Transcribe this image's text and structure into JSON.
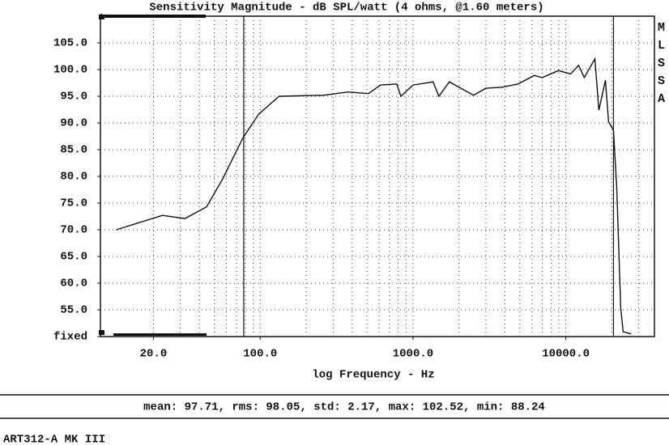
{
  "chart_data": {
    "type": "line",
    "title": "Sensitivity Magnitude - dB SPL/watt (4 ohms, @1.60 meters)",
    "xlabel": "log Frequency - Hz",
    "side_label": "MLSSA",
    "stats": "mean: 97.71, rms: 98.05, std: 2.17, max: 102.52, min: 88.24",
    "footer": "ART312-A MK III",
    "xscale": "log",
    "xlim": [
      9,
      38000
    ],
    "ylim": [
      50,
      110
    ],
    "xticks": [
      {
        "value": 20,
        "label": "20.0"
      },
      {
        "value": 100,
        "label": "100.0"
      },
      {
        "value": 1000,
        "label": "1000.0"
      },
      {
        "value": 10000,
        "label": "10000.0"
      }
    ],
    "yticks": [
      {
        "value": 50,
        "label": "fixed"
      },
      {
        "value": 55,
        "label": "55.0"
      },
      {
        "value": 60,
        "label": "60.0"
      },
      {
        "value": 65,
        "label": "65.0"
      },
      {
        "value": 70,
        "label": "70.0"
      },
      {
        "value": 75,
        "label": "75.0"
      },
      {
        "value": 80,
        "label": "80.0"
      },
      {
        "value": 85,
        "label": "85.0"
      },
      {
        "value": 90,
        "label": "90.0"
      },
      {
        "value": 95,
        "label": "95.0"
      },
      {
        "value": 100,
        "label": "100.0"
      },
      {
        "value": 105,
        "label": "105.0"
      }
    ],
    "xgrid": [
      20,
      30,
      40,
      50,
      60,
      70,
      80,
      90,
      100,
      200,
      300,
      400,
      500,
      600,
      700,
      800,
      900,
      1000,
      2000,
      3000,
      4000,
      5000,
      6000,
      7000,
      8000,
      9000,
      10000,
      20000,
      30000
    ],
    "cursors": [
      78,
      20500
    ],
    "grid": true,
    "series": [
      {
        "name": "Sensitivity",
        "color": "#111111",
        "x": [
          11.4,
          22.9,
          32.2,
          44.6,
          57,
          77,
          98,
          133,
          261,
          377,
          511,
          614,
          783,
          832,
          1000,
          1355,
          1475,
          1729,
          2490,
          2990,
          3810,
          4870,
          6210,
          7010,
          8950,
          10740,
          12130,
          13210,
          15490,
          16450,
          18150,
          19050,
          20500,
          21530,
          22860,
          23720,
          26790
        ],
        "values": [
          70.0,
          72.7,
          72.1,
          74.3,
          79.6,
          87.2,
          91.7,
          95.0,
          95.2,
          95.8,
          95.5,
          97.1,
          97.3,
          95.0,
          97.1,
          97.7,
          95.0,
          97.7,
          95.2,
          96.5,
          96.7,
          97.3,
          98.9,
          98.5,
          99.8,
          99.2,
          100.8,
          98.5,
          102.0,
          92.4,
          98.0,
          90.2,
          88.7,
          78.1,
          55.4,
          50.9,
          50.5
        ]
      }
    ]
  }
}
